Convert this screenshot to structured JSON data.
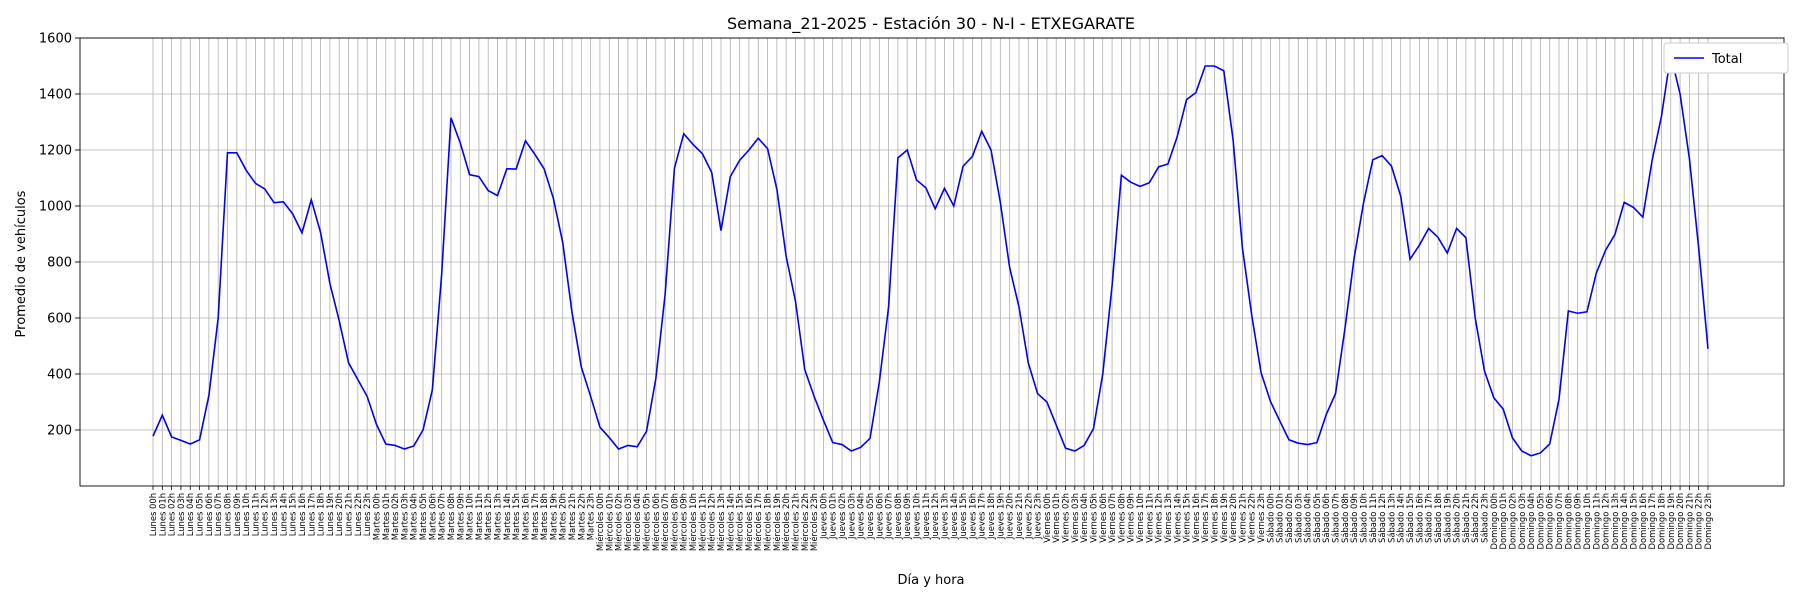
{
  "chart_data": {
    "type": "line",
    "title": "Semana_21-2025 - Estación 30 - N-I  - ETXEGARATE",
    "xlabel": "Día y hora",
    "ylabel": "Promedio de vehículos",
    "ylim": [
      0,
      1600
    ],
    "yticks": [
      200,
      400,
      600,
      800,
      1000,
      1200,
      1400,
      1600
    ],
    "grid": true,
    "legend_position": "top-right",
    "days": [
      "Lunes",
      "Martes",
      "Miércoles",
      "Jueves",
      "Viernes",
      "Sábado",
      "Domingo"
    ],
    "series": [
      {
        "name": "Total",
        "color": "#0000ff",
        "values": [
          178,
          253,
          175,
          163,
          150,
          165,
          323,
          600,
          1190,
          1190,
          1128,
          1081,
          1061,
          1012,
          1015,
          972,
          904,
          1022,
          905,
          723,
          590,
          440,
          380,
          320,
          220,
          150,
          145,
          132,
          143,
          200,
          343,
          755,
          1315,
          1225,
          1112,
          1105,
          1055,
          1037,
          1133,
          1132,
          1233,
          1185,
          1133,
          1027,
          870,
          620,
          425,
          320,
          210,
          173,
          132,
          145,
          140,
          195,
          383,
          685,
          1135,
          1258,
          1220,
          1187,
          1120,
          912,
          1105,
          1163,
          1200,
          1242,
          1205,
          1060,
          820,
          660,
          415,
          320,
          235,
          155,
          148,
          125,
          138,
          170,
          370,
          640,
          1172,
          1200,
          1093,
          1065,
          990,
          1063,
          1000,
          1142,
          1177,
          1267,
          1200,
          1013,
          780,
          640,
          440,
          330,
          300,
          218,
          135,
          125,
          145,
          205,
          400,
          715,
          1110,
          1085,
          1070,
          1083,
          1140,
          1150,
          1248,
          1380,
          1405,
          1500,
          1500,
          1483,
          1235,
          850,
          610,
          405,
          303,
          233,
          165,
          153,
          148,
          155,
          255,
          330,
          560,
          815,
          1010,
          1165,
          1180,
          1143,
          1035,
          810,
          860,
          920,
          888,
          832,
          920,
          887,
          600,
          410,
          315,
          275,
          172,
          125,
          108,
          118,
          150,
          310,
          625,
          617,
          622,
          760,
          842,
          898,
          1013,
          995,
          960,
          1163,
          1320,
          1540,
          1400,
          1170,
          850,
          490
        ]
      }
    ]
  }
}
